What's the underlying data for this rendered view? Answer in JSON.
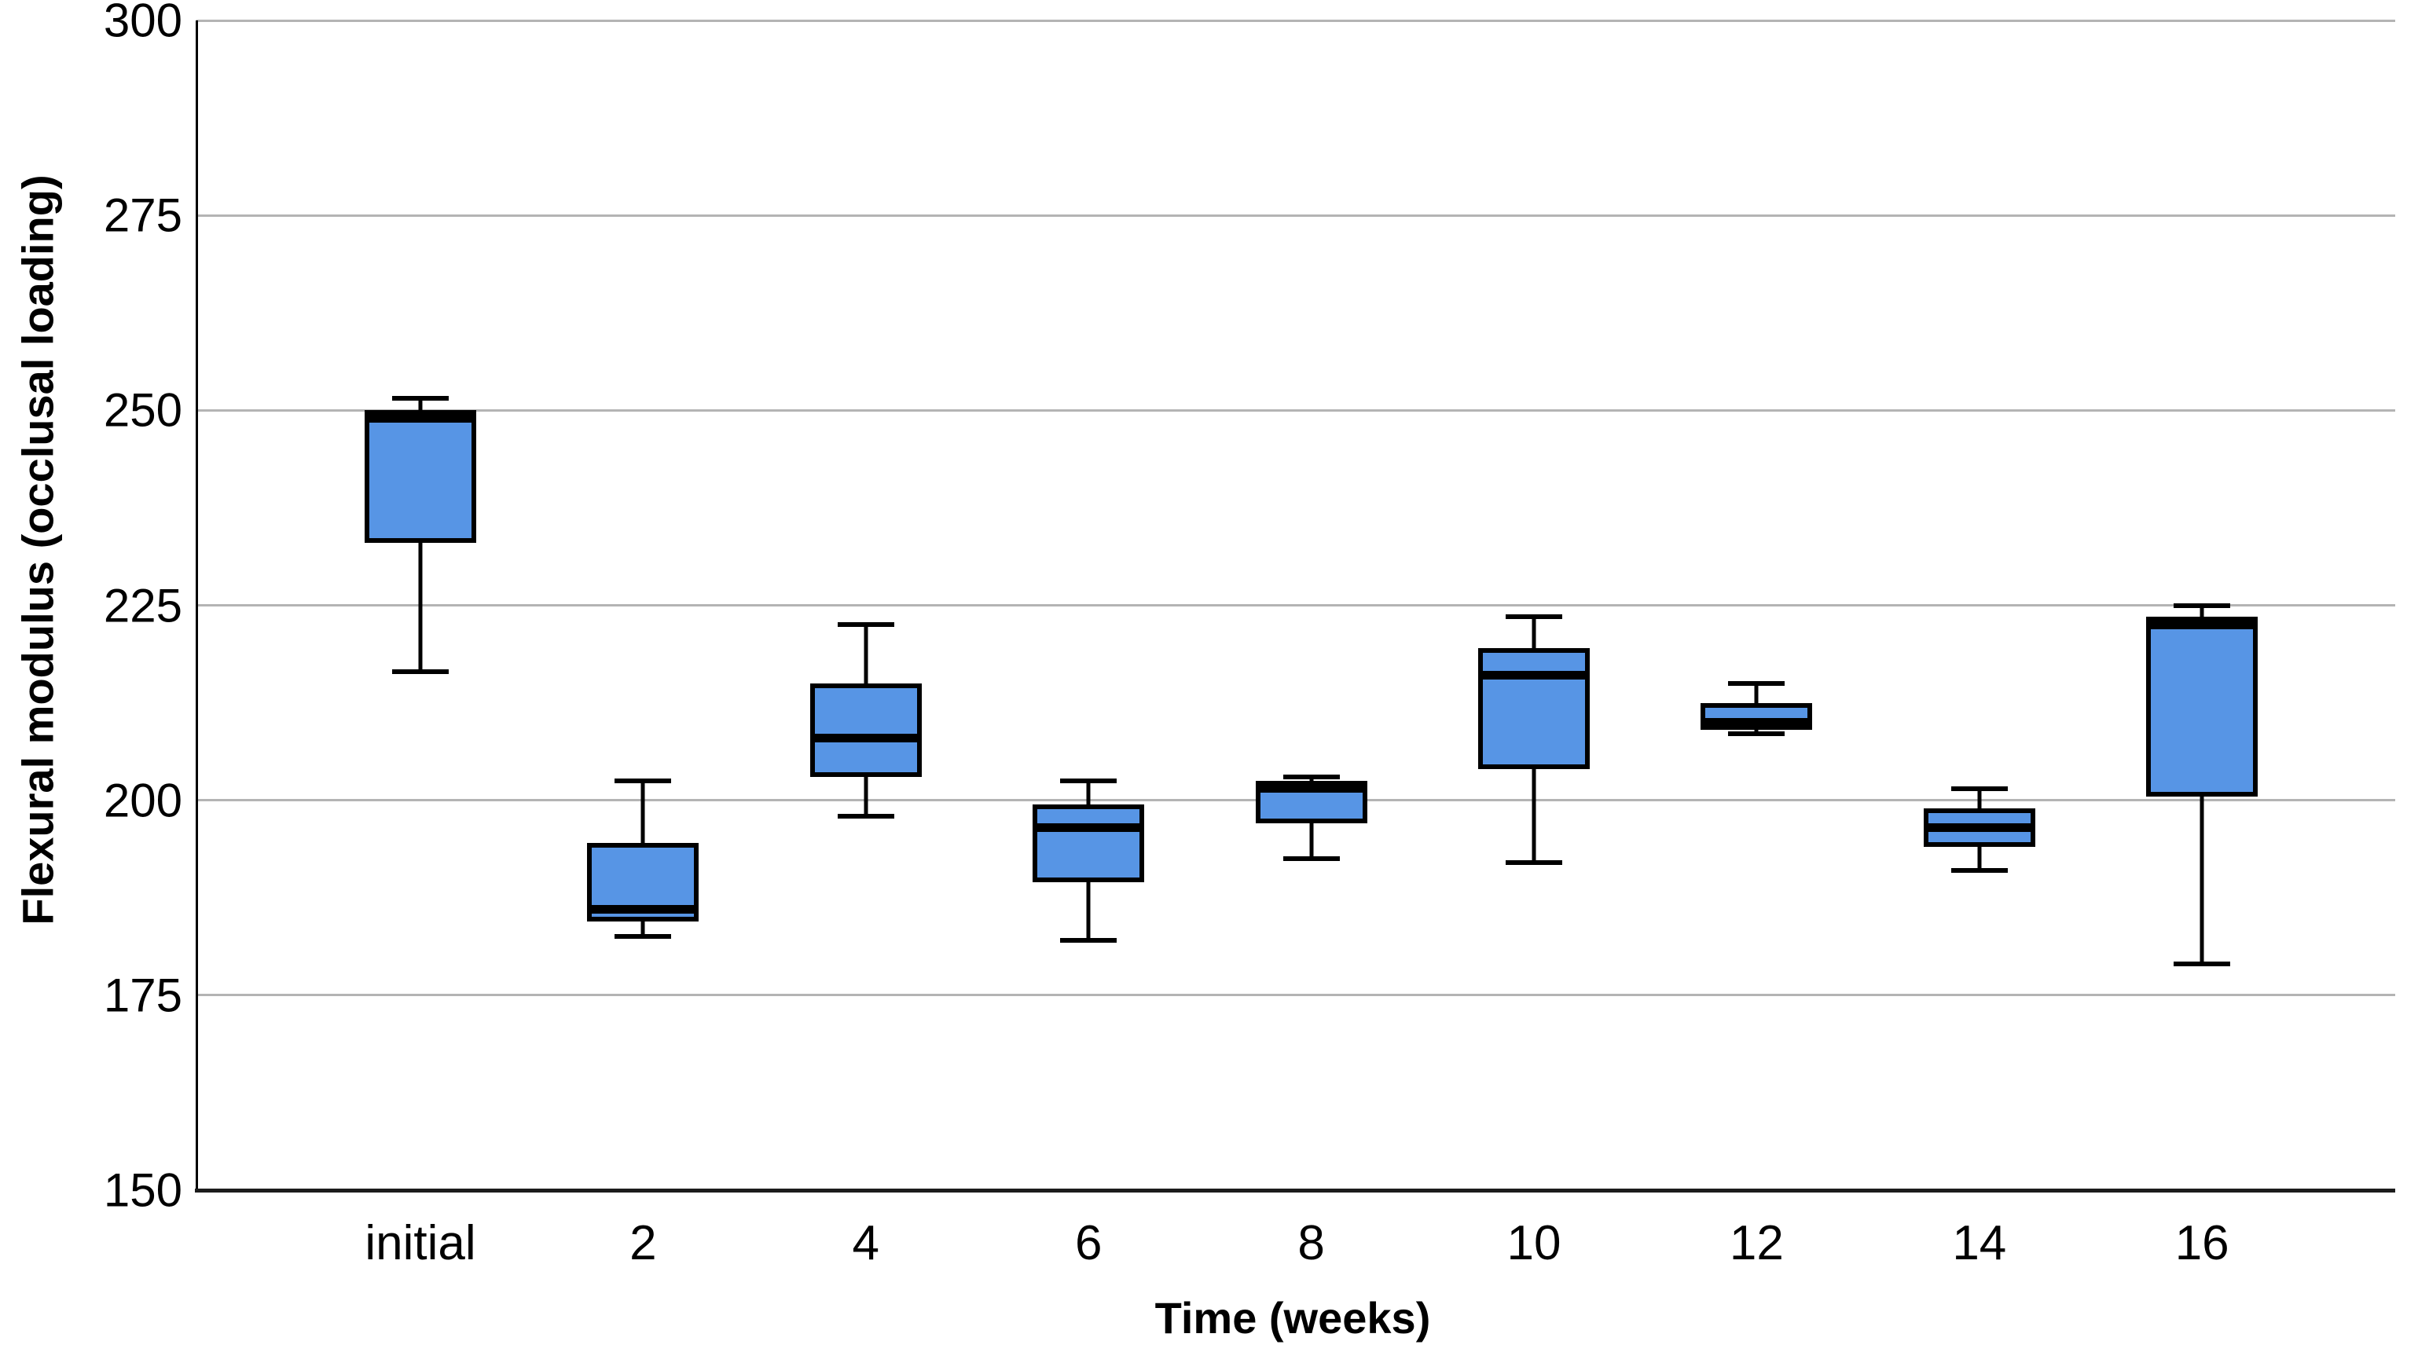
{
  "figure": {
    "background": "#ffffff",
    "box_fill_color": "#5795E5",
    "box_border_color": "#000000",
    "median_color": "#000000",
    "gridline_color": "#b4b4b4",
    "axis_line_color": "#000000"
  },
  "chart_data": {
    "type": "box",
    "title": "",
    "xlabel": "Time (weeks)",
    "ylabel": "Flexural modulus (occlusal loading)",
    "categories": [
      "initial",
      "2",
      "4",
      "6",
      "8",
      "10",
      "12",
      "14",
      "16"
    ],
    "ytick_labels": [
      "150",
      "175",
      "200",
      "225",
      "250",
      "275",
      "300"
    ],
    "yticks": [
      150,
      175,
      200,
      225,
      250,
      275,
      300
    ],
    "ylim": [
      150,
      300
    ],
    "grid": "horizontal",
    "legend": "none",
    "series": [
      {
        "category": "initial",
        "min": 216.5,
        "q1": 233,
        "median": 249,
        "q3": 250,
        "max": 251.5
      },
      {
        "category": "2",
        "min": 182.5,
        "q1": 184.5,
        "median": 186,
        "q3": 194.5,
        "max": 202.5
      },
      {
        "category": "4",
        "min": 198,
        "q1": 203,
        "median": 208,
        "q3": 215,
        "max": 222.5
      },
      {
        "category": "6",
        "min": 182,
        "q1": 189.5,
        "median": 196.5,
        "q3": 199.5,
        "max": 202.5
      },
      {
        "category": "8",
        "min": 192.5,
        "q1": 197,
        "median": 201.5,
        "q3": 202.5,
        "max": 203
      },
      {
        "category": "10",
        "min": 192,
        "q1": 204,
        "median": 216,
        "q3": 219.5,
        "max": 223.5
      },
      {
        "category": "12",
        "min": 208.5,
        "q1": 209,
        "median": 210,
        "q3": 212.5,
        "max": 215
      },
      {
        "category": "14",
        "min": 191,
        "q1": 194,
        "median": 196.5,
        "q3": 199,
        "max": 201.5
      },
      {
        "category": "16",
        "min": 179,
        "q1": 200.5,
        "median": 222.5,
        "q3": 223.5,
        "max": 225
      }
    ]
  }
}
